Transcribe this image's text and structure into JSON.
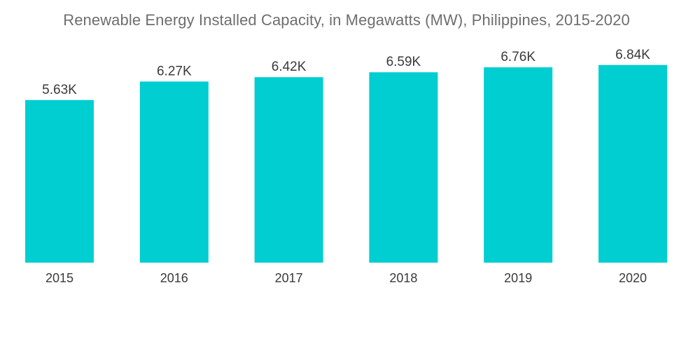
{
  "chart_data": {
    "type": "bar",
    "title": "Renewable Energy Installed Capacity, in Megawatts (MW), Philippines, 2015-2020",
    "xlabel": "",
    "ylabel": "",
    "categories": [
      "2015",
      "2016",
      "2017",
      "2018",
      "2019",
      "2020"
    ],
    "values": [
      5630,
      6270,
      6420,
      6590,
      6760,
      6840
    ],
    "data_labels": [
      "5.63K",
      "6.27K",
      "6.42K",
      "6.59K",
      "6.76K",
      "6.84K"
    ],
    "ylim": [
      0,
      8000
    ],
    "grid": false,
    "legend": "none",
    "bar_color": "#00CED1"
  }
}
